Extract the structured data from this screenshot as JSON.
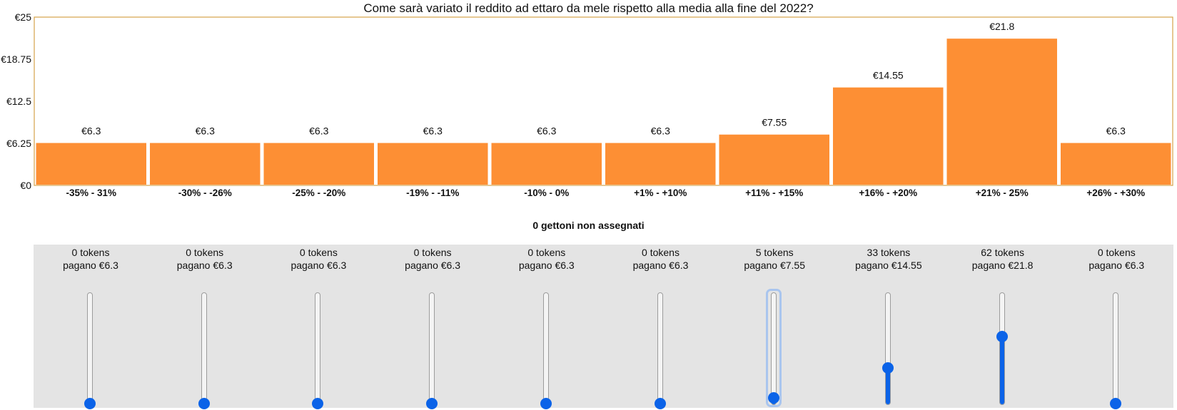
{
  "chart_data": {
    "type": "bar",
    "title": "Come sarà variato il reddito ad ettaro da mele rispetto alla media alla fine del 2022?",
    "categories": [
      "-35% - 31%",
      "-30% - -26%",
      "-25% - -20%",
      "-19% - -11%",
      "-10% - 0%",
      "+1% - +10%",
      "+11% - +15%",
      "+16% - +20%",
      "+21% - 25%",
      "+26% - +30%"
    ],
    "values": [
      6.3,
      6.3,
      6.3,
      6.3,
      6.3,
      6.3,
      7.55,
      14.55,
      21.8,
      6.3
    ],
    "value_labels": [
      "€6.3",
      "€6.3",
      "€6.3",
      "€6.3",
      "€6.3",
      "€6.3",
      "€7.55",
      "€14.55",
      "€21.8",
      "€6.3"
    ],
    "ylim": [
      0,
      25
    ],
    "yticks": [
      0,
      6.25,
      12.5,
      18.75,
      25
    ],
    "ytick_labels": [
      "€0",
      "€6.25",
      "€12.5",
      "€18.75",
      "€25"
    ],
    "xlabel": "",
    "ylabel": "",
    "grid": false,
    "colors": {
      "bar": "#fd8f34",
      "frame": "#d6a24a"
    }
  },
  "summary": {
    "unassigned_text": "0 gettoni non assegnati"
  },
  "sliders": [
    {
      "tokens_label": "0 tokens",
      "pays_label": "pagano €6.3",
      "value": 0
    },
    {
      "tokens_label": "0 tokens",
      "pays_label": "pagano €6.3",
      "value": 0
    },
    {
      "tokens_label": "0 tokens",
      "pays_label": "pagano €6.3",
      "value": 0
    },
    {
      "tokens_label": "0 tokens",
      "pays_label": "pagano €6.3",
      "value": 0
    },
    {
      "tokens_label": "0 tokens",
      "pays_label": "pagano €6.3",
      "value": 0
    },
    {
      "tokens_label": "0 tokens",
      "pays_label": "pagano €6.3",
      "value": 0
    },
    {
      "tokens_label": "5 tokens",
      "pays_label": "pagano €7.55",
      "value": 5,
      "focused": true
    },
    {
      "tokens_label": "33 tokens",
      "pays_label": "pagano €14.55",
      "value": 33
    },
    {
      "tokens_label": "62 tokens",
      "pays_label": "pagano €21.8",
      "value": 62
    },
    {
      "tokens_label": "0 tokens",
      "pays_label": "pagano €6.3",
      "value": 0
    }
  ],
  "slider_max": 100,
  "colors": {
    "accent": "#0b63e8",
    "panel": "#e4e4e4",
    "focus": "#a9c5ee"
  }
}
